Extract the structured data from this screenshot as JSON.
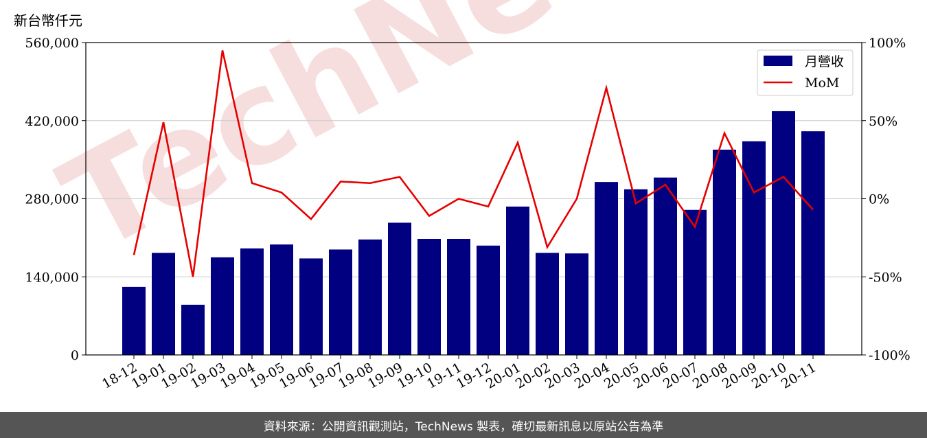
{
  "unit_label": "新台幣仟元",
  "footer_text": "資料來源：公開資訊觀測站，TechNews 製表，確切最新訊息以原站公告為準",
  "watermark": "TechNews",
  "colors": {
    "bar": "#000080",
    "line": "#e60000",
    "grid": "#cccccc",
    "footer_bg": "#555555",
    "watermark": "#e8a0a0"
  },
  "chart_data": {
    "type": "bar",
    "categories": [
      "18-12",
      "19-01",
      "19-02",
      "19-03",
      "19-04",
      "19-05",
      "19-06",
      "19-07",
      "19-08",
      "19-09",
      "19-10",
      "19-11",
      "19-12",
      "20-01",
      "20-02",
      "20-03",
      "20-04",
      "20-05",
      "20-06",
      "20-07",
      "20-08",
      "20-09",
      "20-10",
      "20-11"
    ],
    "series": [
      {
        "name": "月營收",
        "type": "bar",
        "axis": "left",
        "values": [
          122000,
          183000,
          90000,
          175000,
          191000,
          198000,
          173000,
          189000,
          207000,
          237000,
          208000,
          208000,
          196000,
          266000,
          183000,
          182000,
          310000,
          297000,
          318000,
          260000,
          368000,
          383000,
          437000,
          401000
        ]
      },
      {
        "name": "MoM",
        "type": "line",
        "axis": "right",
        "values": [
          -36,
          49,
          -50,
          95,
          10,
          4,
          -13,
          11,
          10,
          14,
          -11,
          0,
          -5,
          36,
          -31,
          0,
          71,
          -3,
          9,
          -18,
          42,
          4,
          14,
          -7
        ]
      }
    ],
    "y_left": {
      "ylim": [
        0,
        560000
      ],
      "ticks": [
        "0",
        "140,000",
        "280,000",
        "420,000",
        "560,000"
      ]
    },
    "y_right": {
      "ylim": [
        -100,
        100
      ],
      "ticks": [
        "-100%",
        "-50%",
        "0%",
        "50%",
        "100%"
      ]
    },
    "grid": true,
    "legend_placement": "top-right"
  }
}
